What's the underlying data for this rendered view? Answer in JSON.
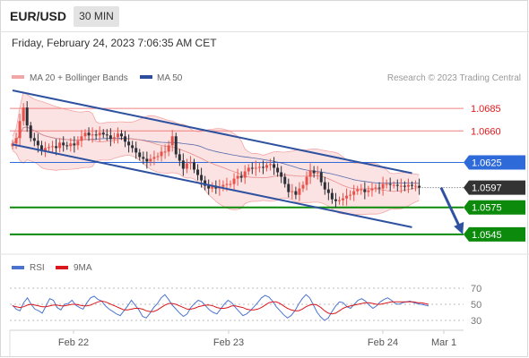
{
  "header": {
    "symbol": "EUR/USD",
    "timeframe": "30 MIN",
    "timestamp": "Friday, February 24, 2023 7:06:35 AM CET"
  },
  "legend": {
    "ma20_bb": "MA 20 + Bollinger Bands",
    "ma50": "MA 50",
    "credit": "Research © 2023 Trading Central",
    "rsi": "RSI",
    "rsi_ma": "9MA"
  },
  "colors": {
    "bull": "#e8524a",
    "bear": "#2b2f36",
    "ma20_bb": "#f3a6a6",
    "band_fill": "#fbdede",
    "ma50": "#2c4e9c",
    "channel": "#2f52a0",
    "support": "#0b8a0b",
    "resistance_line": "#f08080",
    "resistance_text": "#e0191c",
    "pivot": "#2f6bd8",
    "last_price": "#333333",
    "rsi": "#4a74d0",
    "rsi_ma": "#d9181e"
  },
  "chart_data": {
    "type": "candlestick",
    "x_labels": [
      "Feb 22",
      "Feb 23",
      "Feb 24",
      "Mar 1"
    ],
    "y_range": [
      1.0525,
      1.071
    ],
    "last_price": "1.0597",
    "levels": [
      {
        "label": "1.0685",
        "value": 1.0685,
        "kind": "resistance"
      },
      {
        "label": "1.0660",
        "value": 1.066,
        "kind": "resistance"
      },
      {
        "label": "1.0625",
        "value": 1.0625,
        "kind": "pivot"
      },
      {
        "label": "1.0575",
        "value": 1.0575,
        "kind": "support"
      },
      {
        "label": "1.0545",
        "value": 1.0545,
        "kind": "support"
      }
    ],
    "channel": {
      "upper": [
        [
          0,
          1.0705
        ],
        [
          110,
          1.0613
        ]
      ],
      "lower": [
        [
          0,
          1.0645
        ],
        [
          110,
          1.0553
        ]
      ]
    },
    "forecast_arrow": [
      [
        118,
        1.0597
      ],
      [
        124,
        1.0545
      ]
    ],
    "candles_closes": [
      1.0646,
      1.0652,
      1.0671,
      1.0686,
      1.0666,
      1.0652,
      1.0649,
      1.0644,
      1.0638,
      1.0641,
      1.0642,
      1.0643,
      1.0641,
      1.0647,
      1.0644,
      1.0643,
      1.0646,
      1.0644,
      1.0649,
      1.0654,
      1.0658,
      1.0655,
      1.0656,
      1.0655,
      1.0658,
      1.0656,
      1.0655,
      1.0651,
      1.0653,
      1.0657,
      1.0654,
      1.0648,
      1.0644,
      1.0641,
      1.0636,
      1.0631,
      1.0629,
      1.0626,
      1.0629,
      1.0631,
      1.0632,
      1.0637,
      1.0637,
      1.0644,
      1.0654,
      1.0634,
      1.0627,
      1.0618,
      1.0624,
      1.0625,
      1.0617,
      1.0611,
      1.0605,
      1.0599,
      1.0596,
      1.0599,
      1.0596,
      1.0598,
      1.06,
      1.0601,
      1.0601,
      1.0607,
      1.061,
      1.0608,
      1.0615,
      1.0619,
      1.0618,
      1.0619,
      1.062,
      1.0619,
      1.0622,
      1.0623,
      1.0619,
      1.0614,
      1.0609,
      1.0601,
      1.0592,
      1.0593,
      1.0589,
      1.0596,
      1.06,
      1.0609,
      1.0616,
      1.0613,
      1.0614,
      1.0603,
      1.0595,
      1.0591,
      1.0584,
      1.0582,
      1.0583,
      1.0585,
      1.0588,
      1.0589,
      1.0593,
      1.0595,
      1.0595,
      1.0592,
      1.0594,
      1.0596,
      1.0597,
      1.0596,
      1.0601,
      1.0601,
      1.06,
      1.06,
      1.0599,
      1.0599,
      1.0598,
      1.06,
      1.0599,
      1.0599,
      1.0597
    ],
    "rsi_panel": {
      "y_labels": [
        "70",
        "50",
        "30"
      ],
      "y_range": [
        20,
        80
      ],
      "rsi": [
        49,
        44,
        42,
        52,
        58,
        50,
        44,
        42,
        39,
        48,
        57,
        55,
        46,
        43,
        50,
        51,
        55,
        49,
        46,
        44,
        52,
        58,
        60,
        56,
        54,
        48,
        44,
        41,
        38,
        36,
        42,
        48,
        55,
        49,
        43,
        35,
        33,
        39,
        46,
        51,
        58,
        62,
        56,
        49,
        44,
        39,
        35,
        38,
        46,
        51,
        55,
        53,
        48,
        43,
        40,
        38,
        44,
        50,
        55,
        52,
        46,
        41,
        36,
        38,
        42,
        47,
        52,
        58,
        61,
        59,
        54,
        47,
        42,
        37,
        33,
        36,
        42,
        50,
        57,
        62,
        58,
        49,
        40,
        34,
        30,
        33,
        41,
        48,
        53,
        52,
        47,
        45,
        50,
        55,
        57,
        54,
        49,
        45,
        48,
        53,
        56,
        58,
        55,
        51,
        50,
        52,
        53,
        54,
        52,
        51,
        50,
        49,
        48
      ],
      "rsi_ma": [
        48,
        47,
        46,
        47,
        49,
        50,
        49,
        48,
        47,
        47,
        48,
        49,
        49,
        48,
        48,
        49,
        50,
        50,
        49,
        48,
        48,
        49,
        51,
        53,
        54,
        53,
        51,
        49,
        47,
        45,
        43,
        43,
        44,
        45,
        45,
        44,
        42,
        41,
        41,
        43,
        46,
        49,
        51,
        51,
        50,
        48,
        46,
        44,
        44,
        45,
        47,
        48,
        49,
        49,
        48,
        46,
        45,
        45,
        46,
        48,
        48,
        47,
        46,
        44,
        43,
        43,
        44,
        46,
        49,
        52,
        53,
        53,
        51,
        48,
        45,
        43,
        42,
        42,
        44,
        47,
        49,
        50,
        49,
        46,
        42,
        39,
        38,
        39,
        42,
        45,
        47,
        48,
        49,
        50,
        51,
        52,
        52,
        51,
        50,
        50,
        51,
        52,
        53,
        53,
        53,
        53,
        53,
        53,
        53,
        52,
        52,
        51,
        50
      ]
    }
  }
}
